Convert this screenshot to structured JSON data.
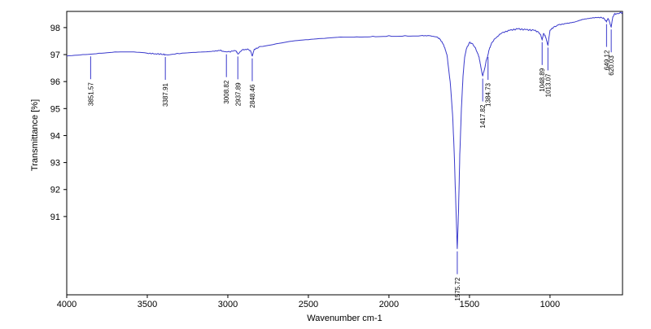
{
  "chart_data": {
    "type": "line",
    "title": "",
    "xlabel": "Wavenumber cm-1",
    "ylabel": "Transmittance [%]",
    "xlim": [
      4000,
      550
    ],
    "ylim": [
      88.1,
      98.6
    ],
    "x_ticks": [
      4000,
      3500,
      3000,
      2500,
      2000,
      1500,
      1000
    ],
    "x_tick_labels": [
      "4000",
      "3500",
      "3000",
      "2500",
      "2000",
      "1500",
      "1000"
    ],
    "y_ticks": [
      91,
      92,
      93,
      94,
      95,
      96,
      97,
      98
    ],
    "y_tick_labels": [
      "91",
      "92",
      "93",
      "94",
      "95",
      "96",
      "97",
      "98"
    ],
    "grid": false,
    "series": [
      {
        "color": "#3a3acc",
        "x": [
          4000,
          3900,
          3800,
          3700,
          3600,
          3500,
          3450,
          3400,
          3387.91,
          3300,
          3200,
          3100,
          3050,
          3008.82,
          2980,
          2950,
          2937.89,
          2910,
          2880,
          2860,
          2848.46,
          2835,
          2800,
          2700,
          2600,
          2500,
          2400,
          2300,
          2200,
          2100,
          2000,
          1900,
          1800,
          1750,
          1700,
          1680,
          1660,
          1640,
          1620,
          1605,
          1595,
          1585,
          1575.72,
          1568,
          1560,
          1550,
          1540,
          1530,
          1520,
          1500,
          1480,
          1460,
          1440,
          1430,
          1417.82,
          1405,
          1395,
          1384.73,
          1375,
          1360,
          1340,
          1300,
          1250,
          1200,
          1150,
          1100,
          1075,
          1060,
          1048.89,
          1040,
          1030,
          1013.07,
          1000,
          980,
          950,
          900,
          850,
          800,
          750,
          700,
          670,
          660,
          649.12,
          640,
          630,
          620.03,
          610,
          600,
          580,
          560,
          550
        ],
        "y": [
          96.95,
          97.0,
          97.05,
          97.1,
          97.1,
          97.05,
          97.03,
          97.01,
          97.0,
          97.03,
          97.08,
          97.12,
          97.15,
          97.1,
          97.12,
          97.14,
          97.02,
          97.18,
          97.2,
          97.15,
          96.95,
          97.2,
          97.3,
          97.4,
          97.5,
          97.55,
          97.6,
          97.65,
          97.66,
          97.68,
          97.7,
          97.7,
          97.7,
          97.7,
          97.65,
          97.55,
          97.35,
          97.0,
          96.0,
          94.8,
          93.4,
          91.5,
          89.8,
          91.2,
          93.3,
          95.0,
          96.2,
          96.9,
          97.2,
          97.45,
          97.4,
          97.2,
          96.9,
          96.55,
          96.2,
          96.5,
          96.8,
          97.0,
          97.25,
          97.45,
          97.6,
          97.8,
          97.9,
          97.95,
          97.92,
          97.9,
          97.85,
          97.75,
          97.55,
          97.78,
          97.7,
          97.35,
          97.9,
          98.0,
          98.1,
          98.15,
          98.2,
          98.3,
          98.35,
          98.38,
          98.35,
          98.3,
          98.22,
          98.35,
          98.2,
          98.02,
          98.4,
          98.5,
          98.52,
          98.55,
          98.55
        ]
      }
    ],
    "peak_labels": [
      {
        "x": 3851.57,
        "text": "3851.57"
      },
      {
        "x": 3387.91,
        "text": "3387.91"
      },
      {
        "x": 3008.82,
        "text": "3008.82"
      },
      {
        "x": 2937.89,
        "text": "2937.89"
      },
      {
        "x": 2848.46,
        "text": "2848.46"
      },
      {
        "x": 1575.72,
        "text": "1575.72"
      },
      {
        "x": 1417.82,
        "text": "1417.82"
      },
      {
        "x": 1384.73,
        "text": "1384.73"
      },
      {
        "x": 1048.89,
        "text": "1048.89"
      },
      {
        "x": 1013.07,
        "text": "1013.07"
      },
      {
        "x": 649.12,
        "text": "649.12"
      },
      {
        "x": 620.03,
        "text": "620.03"
      }
    ]
  }
}
